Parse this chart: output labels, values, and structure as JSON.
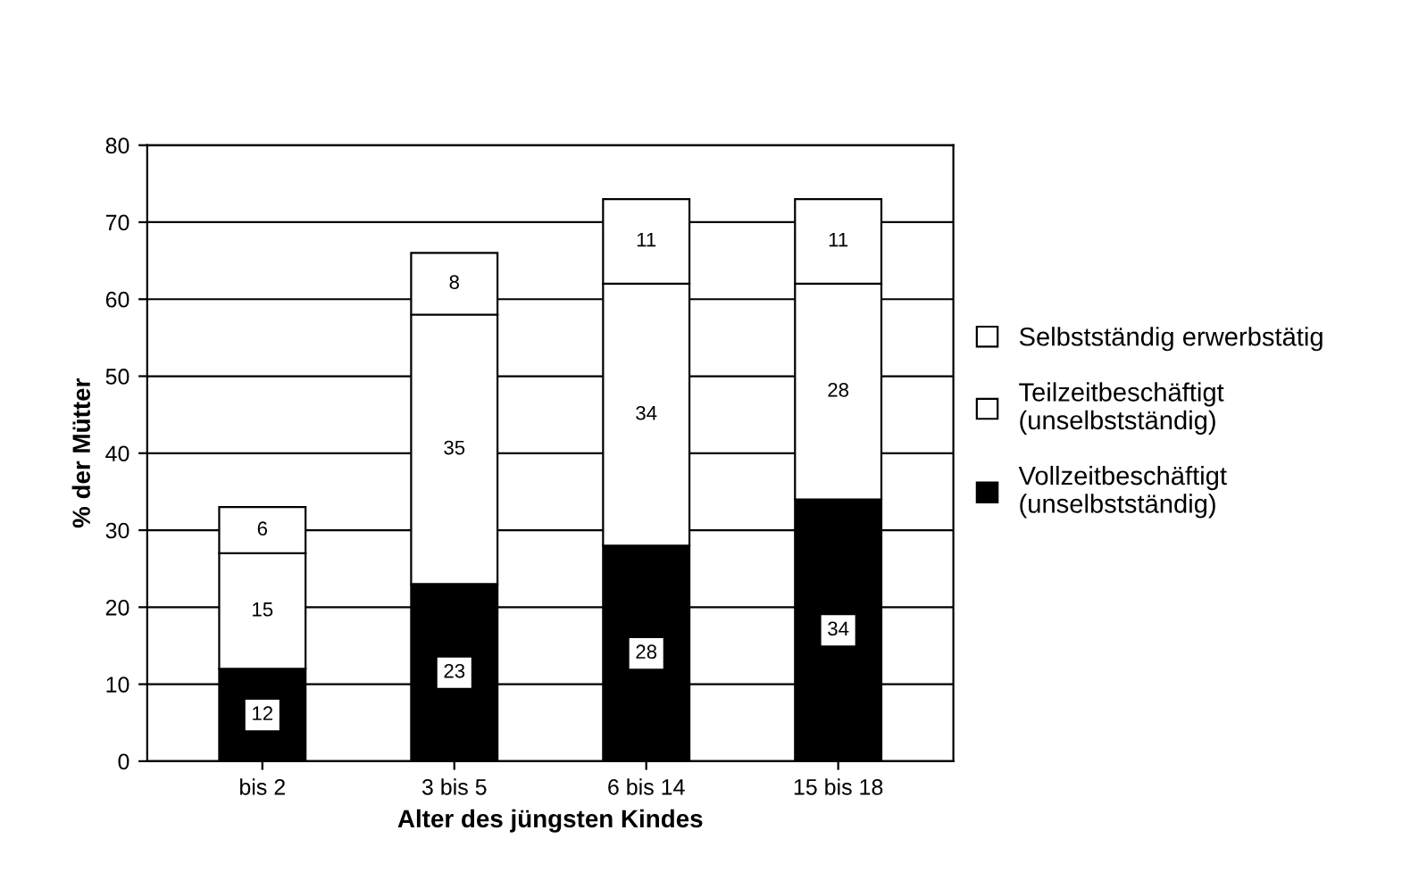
{
  "chart_data": {
    "type": "bar",
    "stacked": true,
    "xlabel": "Alter des jüngsten Kindes",
    "ylabel": "% der Mütter",
    "categories": [
      "bis 2",
      "3 bis 5",
      "6 bis 14",
      "15 bis 18"
    ],
    "series": [
      {
        "name": "Vollzeitbeschäftigt\n(unselbstständig)",
        "color": "#000000",
        "values": [
          12,
          23,
          28,
          34
        ]
      },
      {
        "name": "Teilzeitbeschäftigt\n(unselbstständig)",
        "color": "#ffffff",
        "values": [
          15,
          35,
          34,
          28
        ]
      },
      {
        "name": "Selbstständig erwerbstätig",
        "color": "#ffffff",
        "values": [
          6,
          8,
          11,
          11
        ]
      }
    ],
    "ylim": [
      0,
      80
    ],
    "yticks": [
      0,
      10,
      20,
      30,
      40,
      50,
      60,
      70,
      80
    ],
    "grid": "y",
    "legend": "right",
    "data_labels": true
  }
}
